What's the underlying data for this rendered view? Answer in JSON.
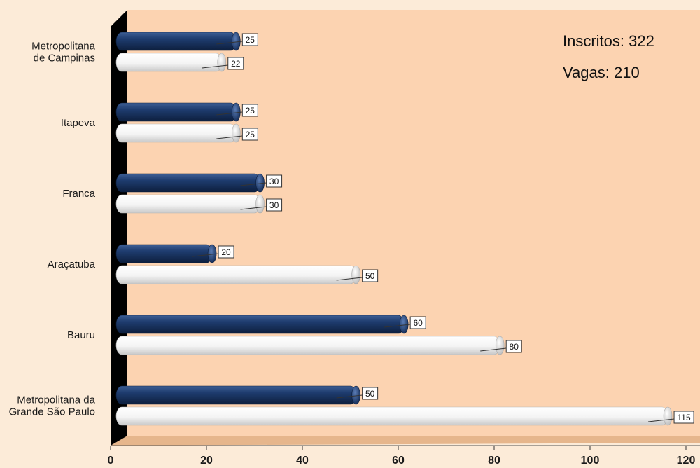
{
  "chart_data": {
    "type": "bar",
    "orientation": "horizontal",
    "categories": [
      [
        "Metropolitana",
        "de Campinas"
      ],
      [
        "Itapeva"
      ],
      [
        "Franca"
      ],
      [
        "Araçatuba"
      ],
      [
        "Bauru"
      ],
      [
        "Metropolitana da",
        "Grande São Paulo"
      ]
    ],
    "series": [
      {
        "values": [
          25,
          25,
          30,
          20,
          60,
          50
        ],
        "color": "#1f3d70"
      },
      {
        "values": [
          22,
          25,
          30,
          50,
          80,
          115
        ],
        "color": "#ffffff"
      }
    ],
    "xlim": [
      0,
      120
    ],
    "xticks": [
      0,
      20,
      40,
      60,
      80,
      100,
      120
    ],
    "annotations": [
      "Inscritos: 322",
      "Vagas: 210"
    ],
    "colors": {
      "background": "#fcebd8",
      "plot_area": "#fcd3b1",
      "floor": "#e6b68c",
      "axis_wall": "#000000",
      "label_box": "#ffffff"
    },
    "grid": false,
    "legend": "none"
  }
}
